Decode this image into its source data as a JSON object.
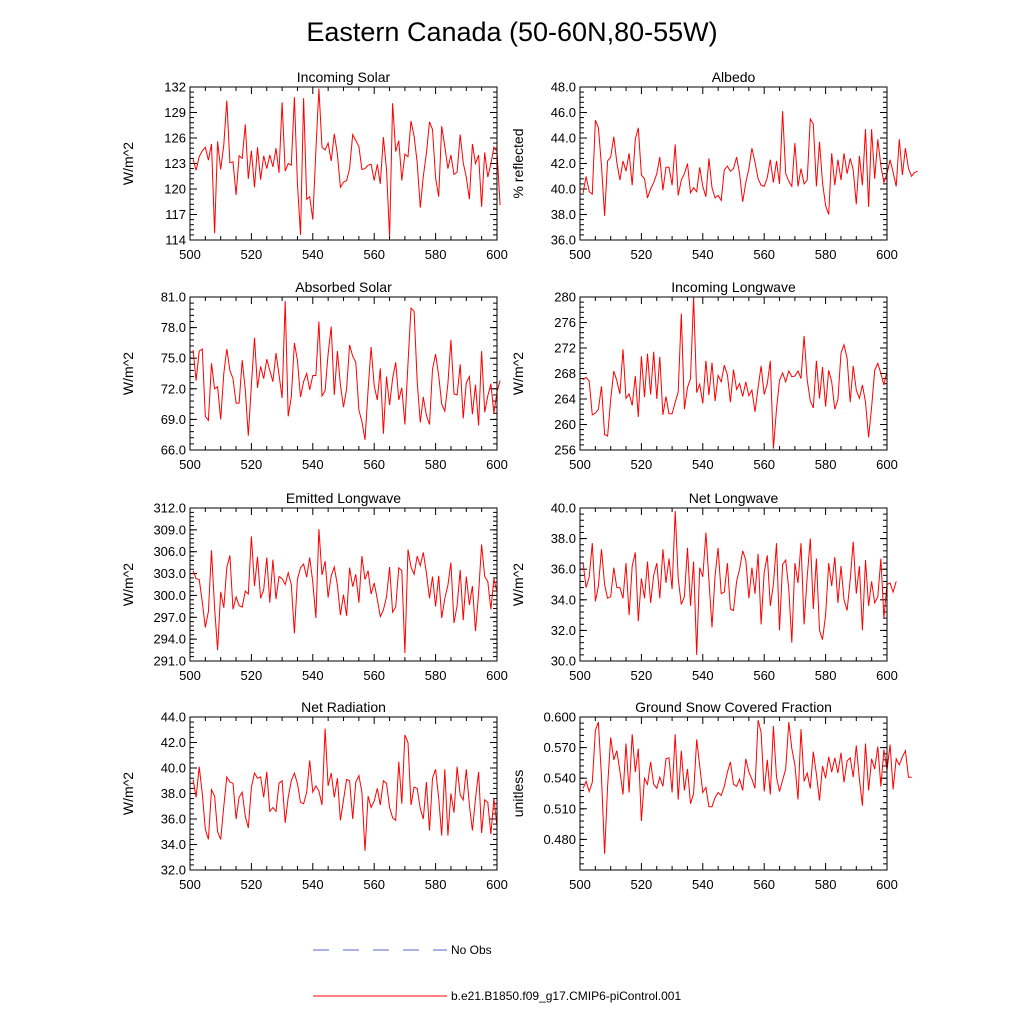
{
  "title": "Eastern Canada (50-60N,80-55W)",
  "colors": {
    "series": "#ff0000",
    "obs": "#5566cc",
    "axis": "#000000"
  },
  "legend": {
    "obs_label": "No Obs",
    "series_label": "b.e21.B1850.f09_g17.CMIP6-piControl.001"
  },
  "chart_data": [
    {
      "type": "line",
      "title": "Incoming Solar",
      "ylabel": "W/m^2",
      "xlim": [
        500,
        600
      ],
      "ylim": [
        114,
        132
      ],
      "xticks": [
        500,
        520,
        540,
        560,
        580,
        600
      ],
      "yticks": [
        114,
        117,
        120,
        123,
        126,
        129,
        132
      ],
      "ytick_labels": [
        "114",
        "117",
        "120",
        "123",
        "126",
        "129",
        "132"
      ],
      "x_start": 501,
      "values": [
        123.5,
        122.2,
        123.8,
        124.5,
        124.9,
        123.4,
        125.3,
        114.8,
        125.6,
        122.3,
        125.2,
        130.4,
        123.1,
        123.2,
        119.3,
        123.9,
        123.6,
        127.6,
        121.2,
        124.5,
        120.2,
        124.9,
        121.1,
        123.9,
        122.4,
        124.0,
        122.6,
        124.8,
        121.9,
        130.2,
        122.1,
        123.0,
        122.8,
        130.8,
        120.7,
        114.6,
        130.7,
        118.8,
        119.1,
        116.4,
        124.6,
        131.8,
        124.9,
        124.6,
        125.4,
        123.3,
        126.5,
        124.1,
        120.2,
        120.8,
        121.0,
        122.4,
        126.4,
        125.7,
        125.0,
        122.3,
        122.4,
        122.8,
        122.9,
        121.0,
        122.9,
        120.6,
        126.1,
        122.3,
        114.4,
        130.1,
        124.4,
        125.7,
        121.0,
        124.1,
        123.8,
        128.0,
        126.2,
        123.1,
        117.8,
        121.5,
        124.2,
        127.9,
        127.0,
        121.3,
        119.1,
        127.4,
        125.0,
        122.4,
        124.0,
        121.7,
        122.0,
        126.4,
        123.1,
        121.4,
        118.8,
        125.3,
        123.0,
        124.0,
        117.9,
        124.3,
        121.4,
        123.0,
        124.9,
        124.4,
        118.1
      ]
    },
    {
      "type": "line",
      "title": "Albedo",
      "ylabel": "% reflected",
      "xlim": [
        500,
        600
      ],
      "ylim": [
        36,
        48
      ],
      "xticks": [
        500,
        520,
        540,
        560,
        580,
        600
      ],
      "yticks": [
        36,
        38,
        40,
        42,
        44,
        46,
        48
      ],
      "ytick_labels": [
        "36.0",
        "38.0",
        "40.0",
        "42.0",
        "44.0",
        "46.0",
        "48.0"
      ],
      "x_start": 501,
      "values": [
        39.7,
        41.0,
        39.8,
        39.6,
        45.4,
        44.8,
        41.8,
        37.9,
        42.2,
        42.5,
        44.1,
        42.1,
        40.7,
        42.2,
        41.4,
        42.8,
        40.3,
        43.9,
        44.8,
        41.1,
        40.8,
        39.3,
        40.0,
        40.5,
        41.2,
        42.5,
        39.9,
        41.7,
        41.7,
        40.3,
        43.5,
        39.5,
        40.7,
        41.2,
        42.0,
        39.7,
        40.1,
        39.8,
        41.7,
        40.2,
        39.4,
        42.4,
        40.1,
        39.3,
        39.5,
        39.1,
        41.5,
        41.8,
        41.4,
        41.6,
        42.5,
        41.2,
        39.0,
        40.5,
        41.6,
        43.2,
        42.1,
        40.8,
        40.3,
        40.2,
        40.9,
        42.3,
        40.5,
        42.2,
        40.4,
        46.1,
        41.2,
        40.6,
        40.2,
        43.6,
        40.2,
        41.6,
        40.4,
        40.7,
        45.5,
        45.1,
        40.2,
        43.7,
        40.5,
        38.7,
        38.0,
        42.8,
        40.3,
        42.3,
        40.7,
        42.8,
        41.2,
        42.4,
        41.5,
        38.8,
        42.6,
        40.3,
        44.7,
        38.6,
        44.7,
        40.8,
        43.9,
        41.8,
        40.5,
        41.2,
        42.3,
        41.3,
        40.2,
        43.9,
        41.1,
        43.2,
        41.6,
        41.0,
        41.3,
        41.4
      ]
    },
    {
      "type": "line",
      "title": "Absorbed Solar",
      "ylabel": "W/m^2",
      "xlim": [
        500,
        600
      ],
      "ylim": [
        66,
        81
      ],
      "xticks": [
        500,
        520,
        540,
        560,
        580,
        600
      ],
      "yticks": [
        66,
        69,
        72,
        75,
        78,
        81
      ],
      "ytick_labels": [
        "66.0",
        "69.0",
        "72.0",
        "75.0",
        "78.0",
        "81.0"
      ],
      "x_start": 501,
      "values": [
        75.8,
        72.8,
        75.7,
        75.9,
        69.3,
        68.9,
        74.5,
        72.0,
        72.2,
        69.0,
        73.5,
        75.9,
        73.8,
        73.0,
        70.6,
        70.6,
        74.8,
        71.9,
        67.4,
        72.4,
        77.0,
        72.1,
        74.2,
        73.0,
        74.9,
        73.8,
        72.7,
        75.5,
        73.4,
        71.1,
        80.6,
        69.3,
        71.2,
        76.5,
        74.8,
        71.2,
        72.7,
        73.5,
        71.9,
        73.3,
        73.3,
        78.6,
        71.3,
        71.8,
        75.4,
        78.1,
        71.4,
        75.7,
        72.4,
        70.2,
        72.0,
        76.3,
        75.2,
        74.6,
        69.9,
        68.8,
        67.0,
        71.9,
        76.1,
        72.3,
        70.9,
        74.0,
        67.6,
        73.2,
        70.4,
        73.0,
        74.6,
        70.9,
        72.1,
        68.5,
        74.5,
        79.9,
        79.6,
        72.7,
        68.7,
        71.2,
        69.4,
        68.5,
        73.9,
        75.4,
        73.3,
        70.5,
        69.8,
        72.5,
        76.8,
        71.5,
        71.4,
        74.4,
        69.1,
        72.6,
        73.2,
        69.5,
        72.4,
        68.4,
        75.7,
        69.7,
        71.3,
        72.5,
        69.6,
        71.7,
        72.8
      ]
    },
    {
      "type": "line",
      "title": "Incoming Longwave",
      "ylabel": "W/m^2",
      "xlim": [
        500,
        600
      ],
      "ylim": [
        256,
        280
      ],
      "xticks": [
        500,
        520,
        540,
        560,
        580,
        600
      ],
      "yticks": [
        256,
        260,
        264,
        268,
        272,
        276,
        280
      ],
      "ytick_labels": [
        "256",
        "260",
        "264",
        "268",
        "272",
        "276",
        "280"
      ],
      "x_start": 501,
      "values": [
        267.0,
        267.4,
        266.8,
        261.5,
        261.8,
        262.4,
        266.0,
        258.4,
        258.2,
        263.9,
        268.4,
        266.9,
        264.8,
        271.8,
        264.1,
        264.8,
        263.0,
        267.6,
        261.2,
        270.7,
        264.3,
        271.1,
        264.7,
        271.4,
        264.0,
        270.6,
        261.5,
        264.4,
        261.7,
        261.7,
        263.5,
        265.1,
        277.4,
        262.4,
        265.8,
        267.2,
        280.0,
        265.0,
        266.3,
        263.3,
        270.0,
        264.6,
        269.7,
        263.7,
        267.7,
        266.7,
        269.3,
        267.8,
        263.5,
        268.6,
        265.5,
        266.4,
        264.4,
        266.7,
        264.5,
        265.4,
        262.0,
        265.8,
        269.2,
        264.7,
        266.4,
        270.0,
        256.2,
        262.4,
        266.9,
        268.1,
        266.7,
        268.4,
        267.5,
        267.6,
        268.4,
        267.2,
        273.9,
        267.0,
        263.7,
        262.6,
        270.0,
        264.1,
        269.0,
        262.8,
        268.5,
        266.7,
        262.4,
        263.9,
        271.2,
        272.5,
        270.4,
        263.5,
        269.2,
        265.4,
        264.1,
        266.2,
        263.5,
        258.0,
        262.7,
        268.5,
        269.6,
        268.0,
        266.2,
        268.4
      ]
    },
    {
      "type": "line",
      "title": "Emitted Longwave",
      "ylabel": "W/m^2",
      "xlim": [
        500,
        600
      ],
      "ylim": [
        291,
        312
      ],
      "xticks": [
        500,
        520,
        540,
        560,
        580,
        600
      ],
      "yticks": [
        291,
        294,
        297,
        300,
        303,
        306,
        309,
        312
      ],
      "ytick_labels": [
        "291.0",
        "294.0",
        "297.0",
        "300.0",
        "303.0",
        "306.0",
        "309.0",
        "312.0"
      ],
      "x_start": 501,
      "values": [
        303.4,
        302.3,
        302.2,
        299.1,
        295.6,
        297.8,
        306.2,
        298.3,
        292.5,
        300.5,
        298.3,
        303.8,
        305.5,
        298.1,
        299.8,
        298.6,
        298.4,
        300.6,
        300.2,
        308.1,
        301.3,
        305.3,
        299.6,
        300.8,
        305.2,
        299.0,
        304.9,
        299.5,
        302.6,
        302.3,
        301.5,
        303.1,
        301.5,
        294.8,
        302.2,
        303.8,
        304.3,
        302.5,
        305.2,
        301.8,
        296.9,
        309.1,
        302.8,
        304.7,
        299.7,
        302.7,
        303.9,
        301.4,
        297.3,
        300.1,
        297.2,
        303.8,
        301.2,
        302.9,
        299.0,
        305.4,
        302.2,
        303.4,
        300.2,
        301.7,
        299.5,
        297.1,
        298.0,
        299.8,
        303.9,
        297.7,
        298.4,
        303.8,
        303.4,
        292.1,
        306.3,
        303.9,
        302.9,
        305.4,
        304.1,
        305.9,
        303.1,
        299.6,
        302.6,
        298.5,
        302.7,
        296.9,
        299.6,
        301.4,
        304.5,
        296.2,
        298.6,
        303.5,
        296.6,
        302.6,
        298.7,
        301.3,
        295.1,
        300.3,
        307.0,
        302.6,
        301.9,
        298.1,
        302.3,
        300.4
      ]
    },
    {
      "type": "line",
      "title": "Net Longwave",
      "ylabel": "W/m^2",
      "xlim": [
        500,
        600
      ],
      "ylim": [
        30,
        40
      ],
      "xticks": [
        500,
        520,
        540,
        560,
        580,
        600
      ],
      "yticks": [
        30,
        32,
        34,
        36,
        38,
        40
      ],
      "ytick_labels": [
        "30.0",
        "32.0",
        "34.0",
        "36.0",
        "38.0",
        "40.0"
      ],
      "x_start": 501,
      "values": [
        36.4,
        34.8,
        35.5,
        37.7,
        33.9,
        34.9,
        37.3,
        35.0,
        34.1,
        34.2,
        36.1,
        34.8,
        34.8,
        34.1,
        36.4,
        33.0,
        36.2,
        37.1,
        32.6,
        35.4,
        34.1,
        36.5,
        33.8,
        35.6,
        36.4,
        34.1,
        37.3,
        35.1,
        36.7,
        34.7,
        39.8,
        35.4,
        33.7,
        34.2,
        37.4,
        33.6,
        36.5,
        30.4,
        36.1,
        35.5,
        38.4,
        35.3,
        32.2,
        35.6,
        37.4,
        34.4,
        34.5,
        36.4,
        33.4,
        33.3,
        35.2,
        36.0,
        37.2,
        36.6,
        34.1,
        36.1,
        34.4,
        37.0,
        32.4,
        35.8,
        36.9,
        33.6,
        35.0,
        37.7,
        32.0,
        36.3,
        36.6,
        34.7,
        31.2,
        36.4,
        35.1,
        37.7,
        32.4,
        35.5,
        38.0,
        33.4,
        36.7,
        32.0,
        31.4,
        33.0,
        36.4,
        34.9,
        36.8,
        33.8,
        36.2,
        34.0,
        33.3,
        35.3,
        37.8,
        34.4,
        36.2,
        32.0,
        36.6,
        33.6,
        35.2,
        33.8,
        34.2,
        36.7,
        32.8,
        35.0,
        35.1,
        34.5,
        35.2
      ]
    },
    {
      "type": "line",
      "title": "Net Radiation",
      "ylabel": "W/m^2",
      "xlim": [
        500,
        600
      ],
      "ylim": [
        32,
        44
      ],
      "xticks": [
        500,
        520,
        540,
        560,
        580,
        600
      ],
      "yticks": [
        32,
        34,
        36,
        38,
        40,
        42,
        44
      ],
      "ytick_labels": [
        "32.0",
        "34.0",
        "36.0",
        "38.0",
        "40.0",
        "42.0",
        "44.0"
      ],
      "x_start": 501,
      "values": [
        39.1,
        37.7,
        40.1,
        38.0,
        35.2,
        34.4,
        38.3,
        37.8,
        35.0,
        34.4,
        37.0,
        39.3,
        38.9,
        38.8,
        36.0,
        37.7,
        38.1,
        36.2,
        35.3,
        38.5,
        39.6,
        39.2,
        39.3,
        37.7,
        39.7,
        36.6,
        36.9,
        36.6,
        38.8,
        39.0,
        35.7,
        37.7,
        39.0,
        39.6,
        38.8,
        37.3,
        37.2,
        38.1,
        40.6,
        38.1,
        38.6,
        38.2,
        37.1,
        43.1,
        38.6,
        39.6,
        37.7,
        39.2,
        35.9,
        37.5,
        39.1,
        39.0,
        36.0,
        38.9,
        39.4,
        38.1,
        33.5,
        37.8,
        36.9,
        37.4,
        38.4,
        37.1,
        39.0,
        38.8,
        36.9,
        36.1,
        35.9,
        40.5,
        37.2,
        42.6,
        42.0,
        37.1,
        38.5,
        38.4,
        36.8,
        36.0,
        38.9,
        35.1,
        39.2,
        39.9,
        37.6,
        34.7,
        39.9,
        34.7,
        38.0,
        36.5,
        40.1,
        37.9,
        37.5,
        39.9,
        37.1,
        35.1,
        37.6,
        39.7,
        34.9,
        37.5,
        37.3,
        34.8,
        37.6,
        35.4
      ]
    },
    {
      "type": "line",
      "title": "Ground Snow Covered Fraction",
      "ylabel": "unitless",
      "xlim": [
        500,
        600
      ],
      "ylim": [
        0.45,
        0.6
      ],
      "xticks": [
        500,
        520,
        540,
        560,
        580,
        600
      ],
      "yticks": [
        0.48,
        0.51,
        0.54,
        0.57,
        0.6
      ],
      "ytick_labels": [
        "0.480",
        "0.510",
        "0.540",
        "0.570",
        "0.600"
      ],
      "x_start": 501,
      "values": [
        0.53,
        0.537,
        0.527,
        0.536,
        0.587,
        0.595,
        0.541,
        0.466,
        0.532,
        0.58,
        0.558,
        0.567,
        0.547,
        0.524,
        0.574,
        0.526,
        0.583,
        0.546,
        0.569,
        0.498,
        0.54,
        0.534,
        0.556,
        0.534,
        0.53,
        0.541,
        0.532,
        0.559,
        0.56,
        0.526,
        0.583,
        0.519,
        0.567,
        0.528,
        0.549,
        0.515,
        0.525,
        0.578,
        0.552,
        0.526,
        0.531,
        0.512,
        0.512,
        0.521,
        0.526,
        0.523,
        0.532,
        0.546,
        0.556,
        0.534,
        0.532,
        0.539,
        0.528,
        0.559,
        0.546,
        0.539,
        0.53,
        0.597,
        0.585,
        0.527,
        0.558,
        0.524,
        0.591,
        0.541,
        0.527,
        0.538,
        0.549,
        0.595,
        0.569,
        0.553,
        0.519,
        0.588,
        0.537,
        0.545,
        0.53,
        0.566,
        0.544,
        0.518,
        0.552,
        0.54,
        0.561,
        0.546,
        0.56,
        0.545,
        0.565,
        0.536,
        0.557,
        0.56,
        0.541,
        0.572,
        0.539,
        0.513,
        0.574,
        0.528,
        0.559,
        0.549,
        0.571,
        0.532,
        0.568,
        0.548,
        0.573,
        0.529,
        0.559,
        0.553,
        0.561,
        0.567,
        0.541,
        0.541
      ]
    }
  ]
}
